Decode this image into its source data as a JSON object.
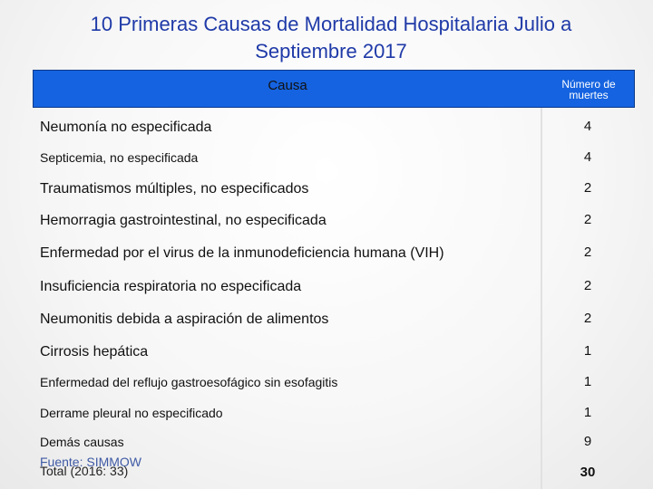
{
  "title": {
    "line1": "10 Primeras Causas de Mortalidad Hospitalaria  Julio a",
    "line2": "Septiembre 2017"
  },
  "table": {
    "header": {
      "cause": "Causa",
      "count_line1": "Número de",
      "count_line2": "muertes"
    },
    "rows": [
      {
        "cause": "Neumonía no especificada",
        "count": "4"
      },
      {
        "cause": "Septicemia, no especificada",
        "count": "4"
      },
      {
        "cause": "Traumatismos múltiples, no especificados",
        "count": "2"
      },
      {
        "cause": "Hemorragia gastrointestinal, no especificada",
        "count": "2"
      },
      {
        "cause": "Enfermedad por el virus de la inmunodeficiencia humana (VIH)",
        "count": "2"
      },
      {
        "cause": "Insuficiencia respiratoria no especificada",
        "count": "2"
      },
      {
        "cause": "Neumonitis debida a aspiración de alimentos",
        "count": "2"
      },
      {
        "cause": "Cirrosis hepática",
        "count": "1"
      },
      {
        "cause": "Enfermedad del reflujo gastroesofágico sin esofagitis",
        "count": "1"
      },
      {
        "cause": "Derrame pleural no especificado",
        "count": "1"
      },
      {
        "cause": "Demás causas",
        "count": "9"
      }
    ],
    "total": {
      "label": "Total (2016: 33)",
      "count": "30"
    }
  },
  "footer": {
    "source": "Fuente: SIMMOW"
  }
}
